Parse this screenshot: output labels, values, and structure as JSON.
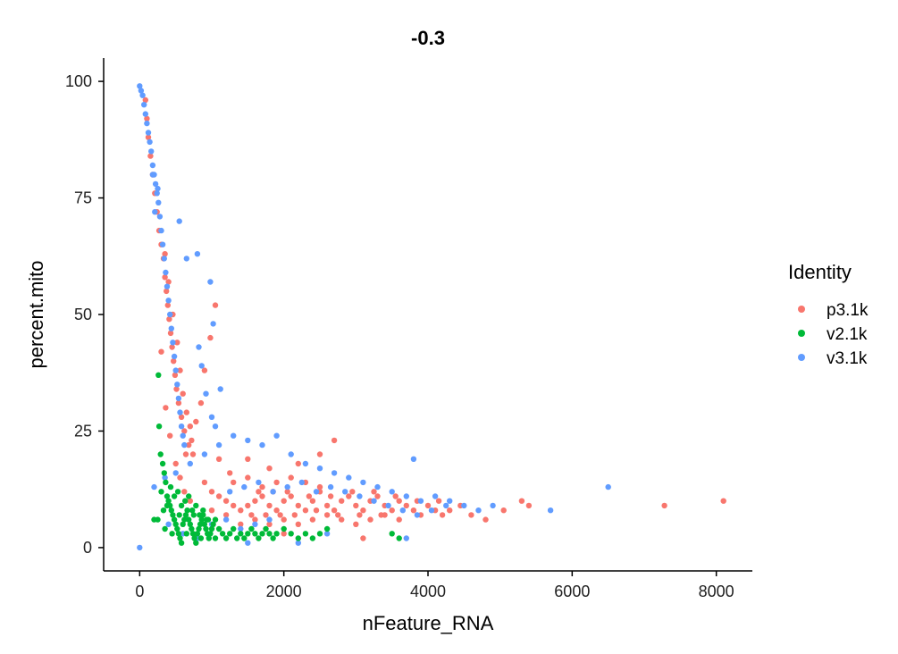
{
  "chart_data": {
    "type": "scatter",
    "title": "-0.3",
    "xlabel": "nFeature_RNA",
    "ylabel": "percent.mito",
    "xlim": [
      -500,
      8500
    ],
    "ylim": [
      -5,
      105
    ],
    "xticks": [
      0,
      2000,
      4000,
      6000,
      8000
    ],
    "xtick_labels": [
      "0",
      "2000",
      "4000",
      "6000",
      "8000"
    ],
    "yticks": [
      0,
      25,
      50,
      75,
      100
    ],
    "ytick_labels": [
      "0",
      "25",
      "50",
      "75",
      "100"
    ],
    "grid": false,
    "legend": {
      "title": "Identity",
      "position": "right"
    },
    "series": [
      {
        "name": "p3.1k",
        "color": "#F8766D",
        "points": [
          [
            80,
            96
          ],
          [
            100,
            92
          ],
          [
            120,
            88
          ],
          [
            150,
            84
          ],
          [
            180,
            80
          ],
          [
            210,
            76
          ],
          [
            240,
            72
          ],
          [
            270,
            68
          ],
          [
            300,
            65
          ],
          [
            330,
            62
          ],
          [
            350,
            58
          ],
          [
            370,
            55
          ],
          [
            390,
            52
          ],
          [
            410,
            49
          ],
          [
            430,
            46
          ],
          [
            450,
            43
          ],
          [
            470,
            40
          ],
          [
            490,
            37
          ],
          [
            510,
            34
          ],
          [
            540,
            31
          ],
          [
            580,
            28
          ],
          [
            620,
            25
          ],
          [
            680,
            22
          ],
          [
            740,
            20
          ],
          [
            350,
            63
          ],
          [
            400,
            57
          ],
          [
            460,
            50
          ],
          [
            520,
            44
          ],
          [
            560,
            38
          ],
          [
            600,
            33
          ],
          [
            650,
            29
          ],
          [
            700,
            26
          ],
          [
            1050,
            52
          ],
          [
            980,
            45
          ],
          [
            900,
            38
          ],
          [
            850,
            31
          ],
          [
            780,
            27
          ],
          [
            720,
            23
          ],
          [
            640,
            20
          ],
          [
            300,
            42
          ],
          [
            360,
            30
          ],
          [
            420,
            24
          ],
          [
            500,
            18
          ],
          [
            560,
            15
          ],
          [
            620,
            12
          ],
          [
            700,
            10
          ],
          [
            900,
            14
          ],
          [
            1000,
            12
          ],
          [
            1100,
            11
          ],
          [
            1200,
            10
          ],
          [
            1300,
            9
          ],
          [
            1400,
            8
          ],
          [
            1500,
            9
          ],
          [
            1600,
            10
          ],
          [
            1700,
            11
          ],
          [
            1800,
            9
          ],
          [
            1900,
            8
          ],
          [
            2000,
            10
          ],
          [
            2100,
            11
          ],
          [
            2200,
            9
          ],
          [
            2300,
            8
          ],
          [
            2400,
            10
          ],
          [
            2500,
            12
          ],
          [
            2600,
            9
          ],
          [
            2700,
            8
          ],
          [
            2800,
            10
          ],
          [
            2900,
            11
          ],
          [
            3000,
            9
          ],
          [
            3100,
            8
          ],
          [
            3200,
            10
          ],
          [
            3300,
            11
          ],
          [
            3400,
            9
          ],
          [
            3500,
            8
          ],
          [
            3600,
            10
          ],
          [
            3700,
            9
          ],
          [
            3800,
            8
          ],
          [
            3900,
            7
          ],
          [
            4000,
            9
          ],
          [
            4100,
            8
          ],
          [
            4200,
            7
          ],
          [
            4300,
            8
          ],
          [
            1300,
            14
          ],
          [
            1500,
            15
          ],
          [
            1700,
            13
          ],
          [
            1900,
            14
          ],
          [
            2100,
            15
          ],
          [
            2300,
            14
          ],
          [
            2500,
            13
          ],
          [
            1400,
            5
          ],
          [
            1600,
            6
          ],
          [
            1800,
            5
          ],
          [
            2000,
            6
          ],
          [
            2200,
            5
          ],
          [
            2400,
            6
          ],
          [
            2600,
            7
          ],
          [
            2800,
            6
          ],
          [
            3000,
            5
          ],
          [
            3200,
            6
          ],
          [
            3400,
            7
          ],
          [
            3600,
            6
          ],
          [
            1200,
            7
          ],
          [
            1000,
            8
          ],
          [
            2700,
            23
          ],
          [
            2500,
            20
          ],
          [
            2200,
            18
          ],
          [
            1800,
            17
          ],
          [
            1500,
            19
          ],
          [
            3100,
            2
          ],
          [
            2000,
            3
          ],
          [
            4600,
            7
          ],
          [
            4800,
            6
          ],
          [
            5050,
            8
          ],
          [
            5300,
            10
          ],
          [
            5400,
            9
          ],
          [
            7280,
            9
          ],
          [
            8100,
            10
          ],
          [
            1100,
            19
          ],
          [
            1250,
            16
          ],
          [
            1650,
            12
          ],
          [
            1850,
            12
          ],
          [
            2050,
            12
          ],
          [
            2350,
            11
          ],
          [
            2650,
            11
          ],
          [
            2950,
            12
          ],
          [
            3250,
            12
          ],
          [
            3550,
            11
          ],
          [
            3850,
            10
          ],
          [
            4150,
            10
          ],
          [
            4450,
            9
          ],
          [
            1550,
            7
          ],
          [
            1750,
            7
          ],
          [
            1950,
            7
          ],
          [
            2150,
            7
          ],
          [
            2450,
            8
          ],
          [
            2750,
            7
          ],
          [
            3050,
            7
          ],
          [
            3350,
            7
          ]
        ]
      },
      {
        "name": "v2.1k",
        "color": "#00BA38",
        "points": [
          [
            260,
            37
          ],
          [
            270,
            26
          ],
          [
            290,
            20
          ],
          [
            320,
            18
          ],
          [
            340,
            16
          ],
          [
            360,
            14
          ],
          [
            300,
            12
          ],
          [
            380,
            11
          ],
          [
            400,
            10
          ],
          [
            420,
            9
          ],
          [
            440,
            8
          ],
          [
            460,
            7
          ],
          [
            480,
            6
          ],
          [
            500,
            5
          ],
          [
            520,
            4
          ],
          [
            540,
            3
          ],
          [
            560,
            2
          ],
          [
            580,
            1
          ],
          [
            600,
            5
          ],
          [
            620,
            6
          ],
          [
            640,
            7
          ],
          [
            660,
            8
          ],
          [
            680,
            6
          ],
          [
            700,
            5
          ],
          [
            720,
            4
          ],
          [
            740,
            3
          ],
          [
            760,
            2
          ],
          [
            780,
            1
          ],
          [
            800,
            3
          ],
          [
            820,
            4
          ],
          [
            840,
            5
          ],
          [
            860,
            6
          ],
          [
            880,
            7
          ],
          [
            900,
            5
          ],
          [
            920,
            4
          ],
          [
            940,
            3
          ],
          [
            960,
            2
          ],
          [
            980,
            3
          ],
          [
            1000,
            4
          ],
          [
            1020,
            5
          ],
          [
            1050,
            6
          ],
          [
            1100,
            4
          ],
          [
            1150,
            3
          ],
          [
            1200,
            2
          ],
          [
            1250,
            3
          ],
          [
            1300,
            4
          ],
          [
            1350,
            2
          ],
          [
            1400,
            3
          ],
          [
            1450,
            2
          ],
          [
            1500,
            3
          ],
          [
            1550,
            4
          ],
          [
            1600,
            3
          ],
          [
            1650,
            2
          ],
          [
            1700,
            3
          ],
          [
            1750,
            4
          ],
          [
            1800,
            3
          ],
          [
            1850,
            2
          ],
          [
            1900,
            3
          ],
          [
            2000,
            4
          ],
          [
            2100,
            3
          ],
          [
            2200,
            2
          ],
          [
            2300,
            3
          ],
          [
            2400,
            2
          ],
          [
            2500,
            3
          ],
          [
            2600,
            4
          ],
          [
            3500,
            3
          ],
          [
            3600,
            2
          ],
          [
            200,
            6
          ],
          [
            250,
            6
          ],
          [
            330,
            8
          ],
          [
            380,
            9
          ],
          [
            430,
            13
          ],
          [
            480,
            11
          ],
          [
            530,
            12
          ],
          [
            580,
            9
          ],
          [
            630,
            10
          ],
          [
            680,
            11
          ],
          [
            730,
            8
          ],
          [
            780,
            9
          ],
          [
            830,
            7
          ],
          [
            880,
            8
          ],
          [
            930,
            6
          ],
          [
            350,
            4
          ],
          [
            450,
            3
          ],
          [
            550,
            7
          ],
          [
            650,
            3
          ],
          [
            750,
            7
          ],
          [
            850,
            2
          ],
          [
            950,
            6
          ],
          [
            1050,
            2
          ]
        ]
      },
      {
        "name": "v3.1k",
        "color": "#619CFF",
        "points": [
          [
            0,
            99
          ],
          [
            20,
            98
          ],
          [
            40,
            97
          ],
          [
            60,
            95
          ],
          [
            80,
            93
          ],
          [
            100,
            91
          ],
          [
            120,
            89
          ],
          [
            140,
            87
          ],
          [
            160,
            85
          ],
          [
            180,
            82
          ],
          [
            200,
            80
          ],
          [
            220,
            78
          ],
          [
            240,
            76
          ],
          [
            260,
            74
          ],
          [
            280,
            71
          ],
          [
            300,
            68
          ],
          [
            320,
            65
          ],
          [
            340,
            62
          ],
          [
            360,
            59
          ],
          [
            380,
            56
          ],
          [
            400,
            53
          ],
          [
            420,
            50
          ],
          [
            440,
            47
          ],
          [
            460,
            44
          ],
          [
            480,
            41
          ],
          [
            500,
            38
          ],
          [
            520,
            35
          ],
          [
            540,
            32
          ],
          [
            560,
            29
          ],
          [
            580,
            26
          ],
          [
            600,
            24
          ],
          [
            620,
            22
          ],
          [
            550,
            70
          ],
          [
            650,
            62
          ],
          [
            980,
            57
          ],
          [
            1020,
            48
          ],
          [
            820,
            43
          ],
          [
            860,
            39
          ],
          [
            1120,
            34
          ],
          [
            180,
            80
          ],
          [
            210,
            72
          ],
          [
            250,
            77
          ],
          [
            800,
            63
          ],
          [
            920,
            33
          ],
          [
            1000,
            28
          ],
          [
            1050,
            26
          ],
          [
            0,
            0
          ],
          [
            200,
            13
          ],
          [
            350,
            15
          ],
          [
            500,
            16
          ],
          [
            700,
            18
          ],
          [
            900,
            20
          ],
          [
            1100,
            22
          ],
          [
            1300,
            24
          ],
          [
            1500,
            23
          ],
          [
            1700,
            22
          ],
          [
            1900,
            24
          ],
          [
            2100,
            20
          ],
          [
            2300,
            18
          ],
          [
            2500,
            17
          ],
          [
            2700,
            16
          ],
          [
            2900,
            15
          ],
          [
            3100,
            14
          ],
          [
            3300,
            13
          ],
          [
            3500,
            12
          ],
          [
            3700,
            11
          ],
          [
            3900,
            10
          ],
          [
            4100,
            11
          ],
          [
            4300,
            10
          ],
          [
            4500,
            9
          ],
          [
            4700,
            8
          ],
          [
            4900,
            9
          ],
          [
            5700,
            8
          ],
          [
            6500,
            13
          ],
          [
            3800,
            19
          ],
          [
            2600,
            3
          ],
          [
            3700,
            2
          ],
          [
            1500,
            1
          ],
          [
            2200,
            1
          ],
          [
            1250,
            12
          ],
          [
            1450,
            13
          ],
          [
            1650,
            14
          ],
          [
            1850,
            12
          ],
          [
            2050,
            13
          ],
          [
            2250,
            14
          ],
          [
            2450,
            12
          ],
          [
            2650,
            13
          ],
          [
            2850,
            12
          ],
          [
            3050,
            11
          ],
          [
            3250,
            10
          ],
          [
            3450,
            9
          ],
          [
            3650,
            8
          ],
          [
            3850,
            7
          ],
          [
            4050,
            8
          ],
          [
            4250,
            9
          ],
          [
            400,
            5
          ],
          [
            600,
            3
          ],
          [
            800,
            2
          ],
          [
            1000,
            5
          ],
          [
            1200,
            6
          ],
          [
            1400,
            4
          ],
          [
            1600,
            5
          ],
          [
            1800,
            6
          ]
        ]
      }
    ]
  }
}
